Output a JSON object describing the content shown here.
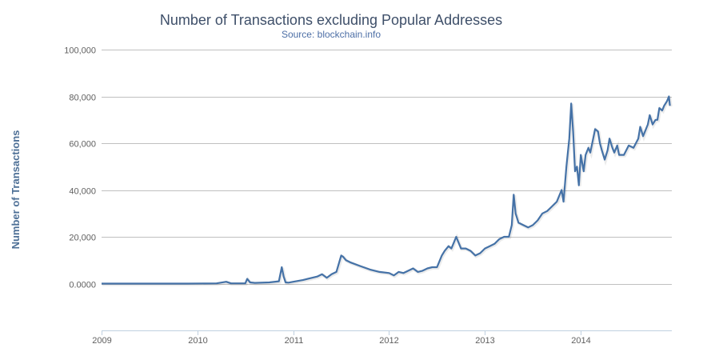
{
  "chart_data": {
    "type": "line",
    "title": "Number of Transactions excluding Popular Addresses",
    "subtitle": "Source: blockchain.info",
    "xlabel": "",
    "ylabel": "Number of Transactions",
    "xlim": [
      2009.0,
      2014.95
    ],
    "ylim": [
      -20000,
      100000
    ],
    "x_ticks": [
      2009,
      2010,
      2011,
      2012,
      2013,
      2014
    ],
    "x_tick_labels": [
      "2009",
      "2010",
      "2011",
      "2012",
      "2013",
      "2014"
    ],
    "y_ticks": [
      0,
      20000,
      40000,
      60000,
      80000,
      100000
    ],
    "y_tick_labels": [
      "0.0000",
      "20,000",
      "40,000",
      "60,000",
      "80,000",
      "100,000"
    ],
    "grid": true,
    "legend": "none",
    "series": [
      {
        "name": "Number of Transactions",
        "color": "#4572a7",
        "x": [
          2009.0,
          2009.3,
          2009.6,
          2009.9,
          2010.2,
          2010.3,
          2010.35,
          2010.5,
          2010.52,
          2010.55,
          2010.6,
          2010.75,
          2010.85,
          2010.88,
          2010.9,
          2010.92,
          2010.95,
          2011.0,
          2011.1,
          2011.15,
          2011.25,
          2011.3,
          2011.35,
          2011.4,
          2011.45,
          2011.5,
          2011.52,
          2011.55,
          2011.6,
          2011.7,
          2011.8,
          2011.9,
          2012.0,
          2012.05,
          2012.1,
          2012.15,
          2012.2,
          2012.25,
          2012.3,
          2012.35,
          2012.4,
          2012.45,
          2012.5,
          2012.55,
          2012.58,
          2012.62,
          2012.65,
          2012.68,
          2012.7,
          2012.75,
          2012.8,
          2012.85,
          2012.9,
          2012.95,
          2013.0,
          2013.05,
          2013.1,
          2013.15,
          2013.2,
          2013.25,
          2013.28,
          2013.3,
          2013.32,
          2013.35,
          2013.4,
          2013.45,
          2013.5,
          2013.55,
          2013.6,
          2013.65,
          2013.7,
          2013.75,
          2013.8,
          2013.82,
          2013.85,
          2013.88,
          2013.9,
          2013.92,
          2013.94,
          2013.96,
          2013.98,
          2014.0,
          2014.03,
          2014.05,
          2014.08,
          2014.1,
          2014.12,
          2014.15,
          2014.18,
          2014.2,
          2014.22,
          2014.25,
          2014.28,
          2014.3,
          2014.33,
          2014.35,
          2014.38,
          2014.4,
          2014.45,
          2014.5,
          2014.55,
          2014.6,
          2014.62,
          2014.65,
          2014.7,
          2014.72,
          2014.75,
          2014.78,
          2014.8,
          2014.82,
          2014.85,
          2014.87,
          2014.9,
          2014.92,
          2014.93
        ],
        "values": [
          0,
          0,
          0,
          0,
          100,
          800,
          100,
          100,
          2000,
          500,
          300,
          500,
          1000,
          7000,
          3000,
          500,
          400,
          800,
          1500,
          2000,
          3000,
          4000,
          2500,
          4000,
          5000,
          12000,
          11500,
          10000,
          9000,
          7500,
          6000,
          5000,
          4500,
          3500,
          5000,
          4500,
          5500,
          6500,
          5000,
          5500,
          6500,
          7000,
          7000,
          12000,
          14000,
          16000,
          15000,
          18000,
          20000,
          15000,
          15000,
          14000,
          12000,
          13000,
          15000,
          16000,
          17000,
          19000,
          20000,
          20000,
          25000,
          38000,
          30000,
          26000,
          25000,
          24000,
          25000,
          27000,
          30000,
          31000,
          33000,
          35000,
          40000,
          35000,
          50000,
          62000,
          77000,
          65000,
          48000,
          50000,
          42000,
          55000,
          48000,
          55000,
          58000,
          56000,
          60000,
          66000,
          65000,
          60000,
          57000,
          53000,
          57000,
          62000,
          58000,
          56000,
          59000,
          55000,
          55000,
          59000,
          58000,
          62000,
          67000,
          63000,
          68000,
          72000,
          68000,
          70000,
          70000,
          75000,
          74000,
          76000,
          78000,
          80000,
          76000
        ]
      }
    ]
  }
}
